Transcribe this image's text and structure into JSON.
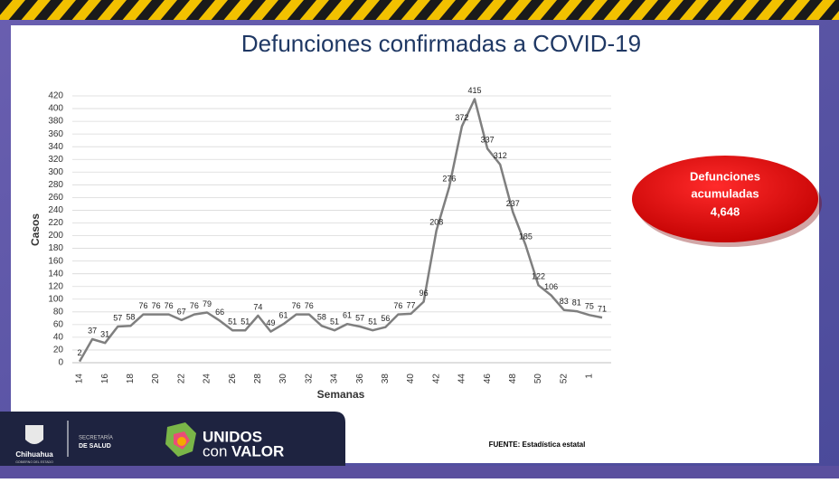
{
  "chart_data": {
    "type": "line",
    "title": "Defunciones confirmadas a COVID-19",
    "y_label": "Casos",
    "x_label": "Semanas",
    "categories": [
      "14",
      null,
      "16",
      null,
      "18",
      null,
      "20",
      null,
      "22",
      null,
      "24",
      null,
      "26",
      null,
      "28",
      null,
      "30",
      null,
      "32",
      null,
      "34",
      null,
      "36",
      null,
      "38",
      null,
      "40",
      null,
      "42",
      null,
      "44",
      null,
      "46",
      null,
      "48",
      null,
      "50",
      null,
      "52",
      null,
      "1",
      null
    ],
    "values": [
      2,
      37,
      31,
      57,
      58,
      76,
      76,
      76,
      67,
      76,
      79,
      66,
      51,
      51,
      74,
      49,
      61,
      76,
      76,
      58,
      51,
      61,
      57,
      51,
      56,
      76,
      77,
      96,
      208,
      276,
      372,
      415,
      337,
      312,
      237,
      185,
      122,
      106,
      83,
      81,
      75,
      71
    ],
    "color": "#7f7f7f",
    "ylim": [
      0,
      420
    ],
    "yticks": [
      0,
      20,
      40,
      60,
      80,
      100,
      120,
      140,
      160,
      180,
      200,
      220,
      240,
      260,
      280,
      300,
      320,
      340,
      360,
      380,
      400,
      420
    ],
    "grid": true,
    "annotation": {
      "lines": [
        "Defunciones",
        "acumuladas"
      ],
      "total": "4,648"
    }
  },
  "footer": {
    "state": "Chihuahua",
    "government": "GOBIERNO DEL ESTADO",
    "department": [
      "SECRETARÍA",
      "DE SALUD"
    ],
    "campaign": [
      "UNIDOS",
      "con",
      "VALOR"
    ],
    "source": "FUENTE: Estadística estatal"
  }
}
